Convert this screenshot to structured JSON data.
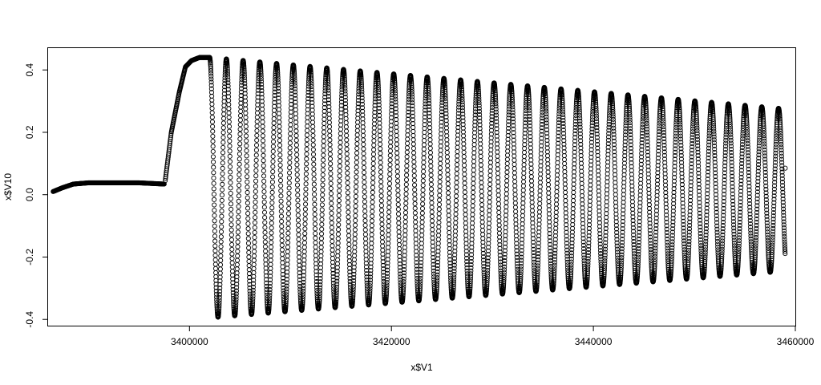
{
  "chart_data": {
    "type": "scatter",
    "title": "",
    "xlabel": "x$V1",
    "ylabel": "x$V10",
    "xlim": [
      3386000,
      3460000
    ],
    "ylim": [
      -0.42,
      0.47
    ],
    "x_ticks": [
      3400000,
      3420000,
      3440000,
      3460000
    ],
    "x_tick_labels": [
      "3400000",
      "3420000",
      "3440000",
      "3460000"
    ],
    "y_ticks": [
      -0.4,
      -0.2,
      0.0,
      0.2,
      0.4
    ],
    "y_tick_labels": [
      "-0.4",
      "-0.2",
      "0.0",
      "0.2",
      "0.4"
    ],
    "grid": false,
    "legend": "none",
    "marker": "open-circle",
    "marker_color": "#000000",
    "series": [
      {
        "segments": [
          {
            "kind": "ramp",
            "x": [
              3386500,
              3387400,
              3388500,
              3390000,
              3395000,
              3397500
            ],
            "y": [
              0.01,
              0.022,
              0.034,
              0.038,
              0.038,
              0.034
            ]
          },
          {
            "kind": "rise",
            "x": [
              3397600,
              3398200,
              3399000,
              3399600,
              3400200,
              3401000,
              3402000
            ],
            "y": [
              0.045,
              0.2,
              0.33,
              0.41,
              0.43,
              0.44,
              0.44
            ]
          },
          {
            "kind": "oscillation",
            "x_start": 3402000,
            "x_end": 3459000,
            "cycles": 34.4,
            "max_start": 0.44,
            "max_end": 0.275,
            "min_start": -0.395,
            "min_end": -0.245,
            "end_value": 0.085
          }
        ]
      }
    ]
  }
}
